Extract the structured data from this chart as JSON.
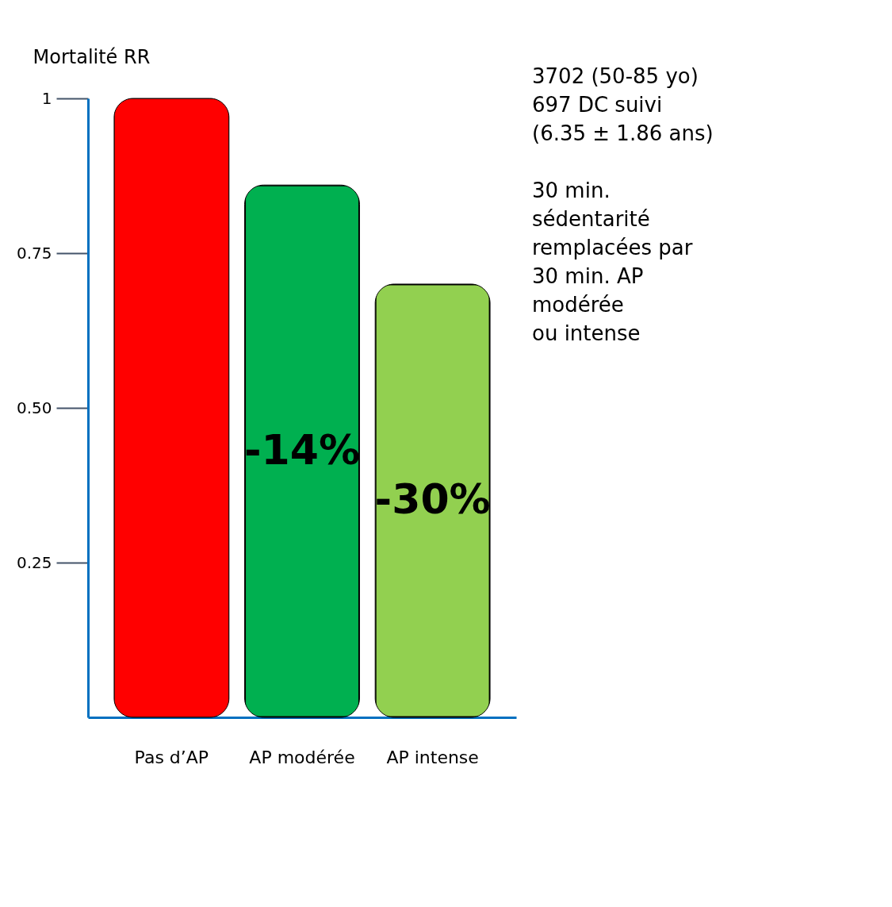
{
  "chart_data": {
    "type": "bar",
    "ylabel": "Mortalité RR",
    "categories": [
      "Pas d’AP",
      "AP modérée",
      "AP intense"
    ],
    "values": [
      1,
      0.86,
      0.7
    ],
    "colors": [
      "#ff0000",
      "#00b050",
      "#92d050"
    ],
    "ylim": [
      0,
      1
    ],
    "yticks": [
      0.25,
      {
        "value": 0.5,
        "label": "0.50"
      },
      0.75,
      1
    ],
    "grid": false,
    "annotations": [
      "-14%",
      "-30%",
      "3702 (50-85 yo)\n697 DC suivi\n(6.35 ± 1.86 ans)",
      "30 min.\nsédentarité\nremplacées par\n30 min.  AP\nmodérée\nou intense"
    ]
  }
}
